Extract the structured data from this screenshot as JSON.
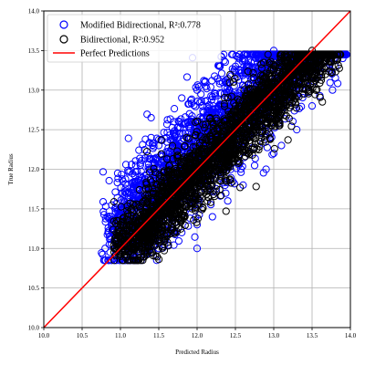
{
  "chart_data": {
    "type": "scatter",
    "title": "",
    "xlabel": "Predicted Radius",
    "ylabel": "True Radius",
    "xlim": [
      10.0,
      14.0
    ],
    "ylim": [
      10.0,
      14.0
    ],
    "xticks": [
      "10.0",
      "10.5",
      "11.0",
      "11.5",
      "12.0",
      "12.5",
      "13.0",
      "13.5",
      "14.0"
    ],
    "yticks": [
      "10.0",
      "10.5",
      "11.0",
      "11.5",
      "12.0",
      "12.5",
      "13.0",
      "13.5",
      "14.0"
    ],
    "grid": true,
    "legend_position": "top-left",
    "series": [
      {
        "name": "Modified Bidirectional, R²:0.778",
        "marker": "open-circle",
        "color": "#0000ff",
        "sample_points": [
          [
            10.8,
            11.0
          ],
          [
            10.9,
            11.2
          ],
          [
            11.0,
            11.4
          ],
          [
            11.2,
            11.8
          ],
          [
            11.4,
            12.0
          ],
          [
            11.5,
            12.3
          ],
          [
            11.6,
            12.4
          ],
          [
            11.7,
            12.6
          ],
          [
            11.8,
            12.9
          ],
          [
            11.9,
            12.7
          ],
          [
            12.0,
            13.0
          ],
          [
            12.1,
            13.1
          ],
          [
            12.3,
            13.3
          ],
          [
            12.5,
            13.3
          ],
          [
            12.8,
            13.4
          ],
          [
            13.0,
            13.5
          ],
          [
            13.2,
            13.4
          ],
          [
            13.5,
            13.4
          ],
          [
            13.8,
            13.4
          ],
          [
            13.9,
            13.4
          ],
          [
            11.5,
            11.0
          ],
          [
            11.8,
            11.2
          ],
          [
            12.0,
            11.3
          ],
          [
            12.2,
            11.4
          ],
          [
            12.4,
            11.6
          ],
          [
            12.6,
            11.8
          ],
          [
            12.9,
            12.0
          ],
          [
            13.1,
            12.3
          ],
          [
            13.3,
            12.5
          ],
          [
            13.5,
            12.8
          ],
          [
            12.0,
            11.0
          ],
          [
            11.2,
            11.6
          ],
          [
            12.8,
            12.6
          ],
          [
            13.0,
            12.2
          ],
          [
            11.4,
            12.4
          ]
        ]
      },
      {
        "name": "Bidirectional, R²:0.952",
        "marker": "open-circle",
        "color": "#000000",
        "sample_points": [
          [
            11.0,
            10.9
          ],
          [
            11.1,
            11.1
          ],
          [
            11.3,
            11.3
          ],
          [
            11.5,
            11.6
          ],
          [
            11.7,
            11.8
          ],
          [
            11.9,
            12.0
          ],
          [
            12.0,
            12.1
          ],
          [
            12.2,
            12.3
          ],
          [
            12.4,
            12.5
          ],
          [
            12.6,
            12.7
          ],
          [
            12.8,
            12.9
          ],
          [
            13.0,
            13.1
          ],
          [
            13.2,
            13.2
          ],
          [
            13.4,
            13.3
          ],
          [
            13.6,
            13.4
          ],
          [
            11.2,
            11.4
          ],
          [
            11.6,
            11.9
          ],
          [
            12.1,
            12.4
          ],
          [
            12.5,
            12.8
          ],
          [
            12.7,
            13.0
          ],
          [
            13.1,
            13.3
          ],
          [
            13.5,
            13.5
          ],
          [
            13.7,
            13.4
          ],
          [
            13.8,
            13.4
          ],
          [
            11.4,
            11.2
          ]
        ]
      },
      {
        "name": "Perfect Predictions",
        "marker": "line",
        "color": "#ff0000",
        "x": [
          10.0,
          14.0
        ],
        "y": [
          10.0,
          14.0
        ]
      }
    ]
  }
}
